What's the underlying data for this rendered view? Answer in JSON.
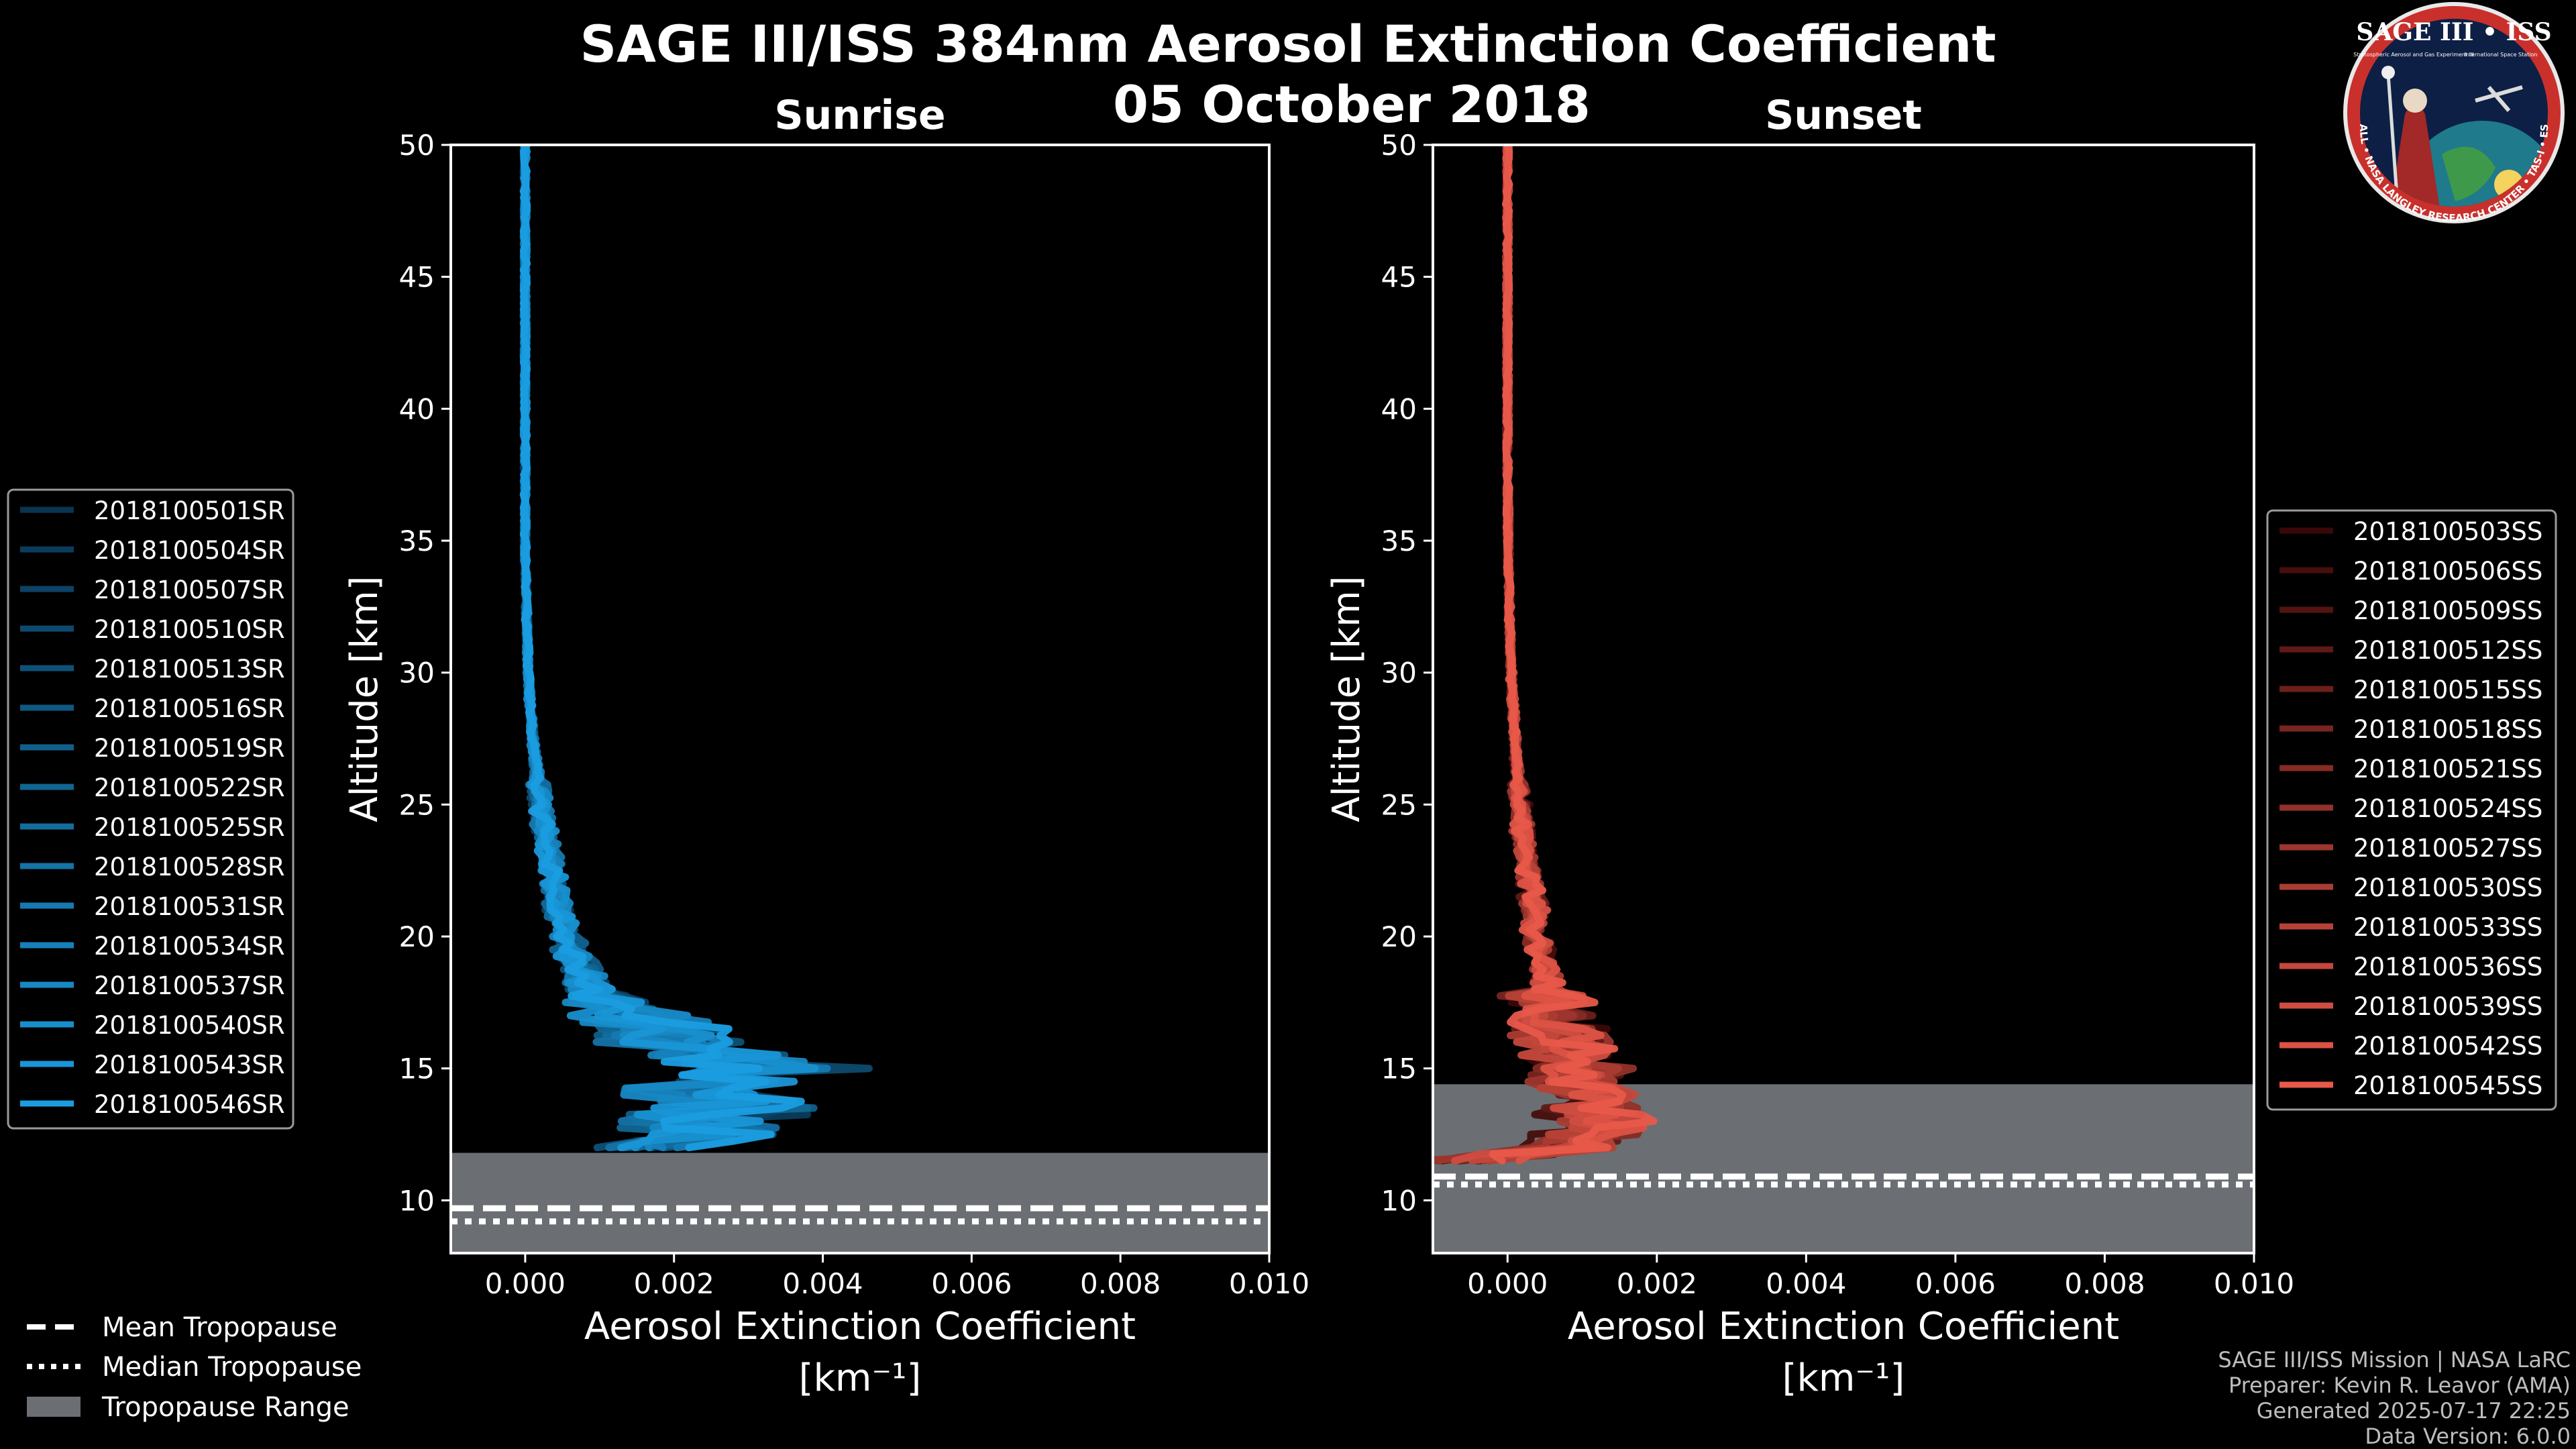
{
  "figure": {
    "title_line1": "SAGE III/ISS 384nm Aerosol Extinction Coefficient",
    "title_line2": "05 October 2018",
    "logo": {
      "text_top": "SAGE III • ISS",
      "text_ring": "BALL • NASA LANGLEY RESEARCH CENTER • TAS-I • ESA",
      "subtitle_left": "Stratospheric Aerosol and Gas Experiment III",
      "subtitle_right": "International Space Station"
    },
    "credits": [
      "SAGE III/ISS Mission | NASA LaRC",
      "Preparer: Kevin R. Leavor (AMA)",
      "Generated 2025-07-17 22:25",
      "Data Version: 6.0.0"
    ],
    "global_legend": {
      "mean": "Mean Tropopause",
      "median": "Median Tropopause",
      "range": "Tropopause Range"
    },
    "colors": {
      "sunrise": "#1a9de0",
      "sunset": "#e8594a",
      "tropopause_fill": "#6b6e72"
    }
  },
  "chart_data": [
    {
      "type": "line",
      "title": "Sunrise",
      "xlabel": "Aerosol Extinction Coefficient",
      "xunit": "[km⁻¹]",
      "ylabel": "Altitude [km]",
      "xlim": [
        -0.001,
        0.01
      ],
      "ylim": [
        8,
        50
      ],
      "xticks": [
        0.0,
        0.002,
        0.004,
        0.006,
        0.008,
        0.01
      ],
      "xtick_labels": [
        "0.000",
        "0.002",
        "0.004",
        "0.006",
        "0.008",
        "0.010"
      ],
      "yticks": [
        10,
        15,
        20,
        25,
        30,
        35,
        40,
        45,
        50
      ],
      "tropopause": {
        "range": [
          8,
          11.8
        ],
        "mean": 9.7,
        "median": 9.2
      },
      "series_names": [
        "2018100501SR",
        "2018100504SR",
        "2018100507SR",
        "2018100510SR",
        "2018100513SR",
        "2018100516SR",
        "2018100519SR",
        "2018100522SR",
        "2018100525SR",
        "2018100528SR",
        "2018100531SR",
        "2018100534SR",
        "2018100537SR",
        "2018100540SR",
        "2018100543SR",
        "2018100546SR"
      ],
      "color_start": "#0a3552",
      "color_end": "#1a9de0",
      "profile": {
        "altitude": [
          12.0,
          12.5,
          13.0,
          13.5,
          14.0,
          14.5,
          15.0,
          15.5,
          16.0,
          16.5,
          17.0,
          17.5,
          18.0,
          19.0,
          20.0,
          21.0,
          22.0,
          23.0,
          24.0,
          25.0,
          26.0,
          27.0,
          28.0,
          29.0,
          30.0,
          32.0,
          35.0,
          38.0,
          41.0,
          44.0,
          47.0,
          50.0
        ],
        "extinction": [
          0.0015,
          0.0026,
          0.0021,
          0.003,
          0.0024,
          0.0027,
          0.0032,
          0.0025,
          0.002,
          0.0018,
          0.0014,
          0.0011,
          0.0009,
          0.0007,
          0.00055,
          0.00045,
          0.00038,
          0.00032,
          0.00026,
          0.0002,
          0.00016,
          0.00012,
          9e-05,
          6e-05,
          4e-05,
          2e-05,
          0.0,
          0.0,
          0.0,
          0.0,
          0.0,
          0.0
        ]
      }
    },
    {
      "type": "line",
      "title": "Sunset",
      "xlabel": "Aerosol Extinction Coefficient",
      "xunit": "[km⁻¹]",
      "ylabel": "Altitude [km]",
      "xlim": [
        -0.001,
        0.01
      ],
      "ylim": [
        8,
        50
      ],
      "xticks": [
        0.0,
        0.002,
        0.004,
        0.006,
        0.008,
        0.01
      ],
      "xtick_labels": [
        "0.000",
        "0.002",
        "0.004",
        "0.006",
        "0.008",
        "0.010"
      ],
      "yticks": [
        10,
        15,
        20,
        25,
        30,
        35,
        40,
        45,
        50
      ],
      "tropopause": {
        "range": [
          8,
          14.4
        ],
        "mean": 10.9,
        "median": 10.6
      },
      "series_names": [
        "2018100503SS",
        "2018100506SS",
        "2018100509SS",
        "2018100512SS",
        "2018100515SS",
        "2018100518SS",
        "2018100521SS",
        "2018100524SS",
        "2018100527SS",
        "2018100530SS",
        "2018100533SS",
        "2018100536SS",
        "2018100539SS",
        "2018100542SS",
        "2018100545SS"
      ],
      "color_start": "#3a0808",
      "color_end": "#e8594a",
      "profile": {
        "altitude": [
          11.5,
          12.0,
          12.5,
          13.0,
          13.5,
          14.0,
          14.5,
          15.0,
          15.5,
          16.0,
          16.5,
          17.0,
          17.5,
          18.0,
          19.0,
          20.0,
          21.0,
          22.0,
          23.0,
          24.0,
          25.0,
          26.0,
          27.0,
          28.0,
          29.0,
          30.0,
          32.0,
          35.0,
          38.0,
          41.0,
          44.0,
          47.0,
          50.0
        ],
        "extinction": [
          -0.0005,
          0.0008,
          0.0011,
          0.0012,
          0.001,
          0.0011,
          0.0009,
          0.001,
          0.0008,
          0.00085,
          0.0007,
          0.00065,
          0.0006,
          0.00055,
          0.00048,
          0.0004,
          0.00035,
          0.0003,
          0.00025,
          0.0002,
          0.00017,
          0.00014,
          0.00011,
          9e-05,
          7e-05,
          5e-05,
          3e-05,
          1e-05,
          0.0,
          0.0,
          0.0,
          0.0,
          0.0
        ]
      }
    }
  ]
}
